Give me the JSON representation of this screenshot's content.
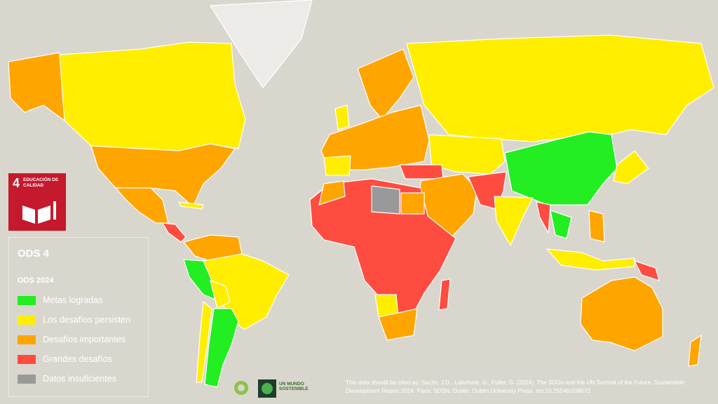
{
  "badge": {
    "number": "4",
    "label": "EDUCACIÓN DE CALIDAD"
  },
  "legend": {
    "title": "ODS 4",
    "subtitle": "ODS 2024",
    "items": [
      {
        "label": "Metas logradas",
        "color": "#22ee22"
      },
      {
        "label": "Los desafíos persisten",
        "color": "#ffee00"
      },
      {
        "label": "Desafíos importantes",
        "color": "#ffa500"
      },
      {
        "label": "Grandes desafíos",
        "color": "#ff4c40"
      },
      {
        "label": "Datos insuficientes",
        "color": "#999999"
      }
    ]
  },
  "logo": "UN MUNDO SOSTENIBLE",
  "citation": "This data should be cited as:  Sachs, J.D., Lafortune, G., Fuller, G. (2024). The SDGs and the UN Summit of the Future. Sustainable Development Report 2024. Paris: SDSN, Dublin: Dublin University Press. doi:10.25546/108572"
}
